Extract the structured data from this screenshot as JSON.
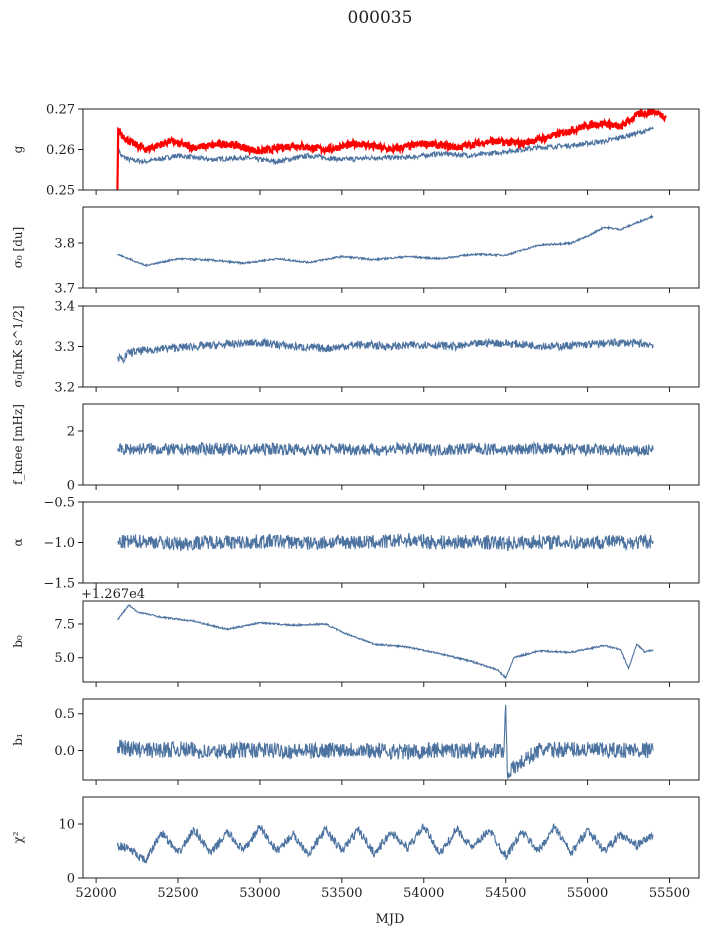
{
  "figure_title": "000035",
  "colors": {
    "series": "#4c72a0",
    "highlight": "#ff0000",
    "axis": "#222222"
  },
  "chart_data": [
    {
      "type": "line",
      "name": "g",
      "ylabel": "g",
      "ylim": [
        0.25,
        0.27
      ],
      "yticks": [
        "0.25",
        "0.26",
        "0.27"
      ],
      "ytick_values": [
        0.25,
        0.26,
        0.27
      ],
      "series": [
        {
          "color": "#4c72a0",
          "x": [
            52130,
            52150,
            52200,
            52300,
            52500,
            52700,
            52900,
            53100,
            53300,
            53500,
            53700,
            53900,
            54100,
            54300,
            54500,
            54700,
            54900,
            55100,
            55300,
            55400
          ],
          "y": [
            0.2615,
            0.2585,
            0.2575,
            0.257,
            0.2585,
            0.2575,
            0.258,
            0.257,
            0.2585,
            0.2575,
            0.258,
            0.258,
            0.259,
            0.2585,
            0.2595,
            0.2605,
            0.261,
            0.262,
            0.264,
            0.265
          ]
        },
        {
          "color": "#ff0000",
          "x": [
            52130,
            52135,
            52150,
            52200,
            52300,
            52450,
            52600,
            52800,
            53000,
            53200,
            53400,
            53600,
            53800,
            54000,
            54200,
            54400,
            54600,
            54800,
            55000,
            55100,
            55200,
            55300,
            55400,
            55480
          ],
          "y": [
            0.25,
            0.265,
            0.264,
            0.262,
            0.26,
            0.262,
            0.2605,
            0.2615,
            0.2595,
            0.261,
            0.26,
            0.2615,
            0.26,
            0.2615,
            0.2605,
            0.262,
            0.2615,
            0.2635,
            0.266,
            0.2665,
            0.2655,
            0.2685,
            0.2695,
            0.268
          ]
        }
      ]
    },
    {
      "type": "line",
      "name": "sigma0-du",
      "ylabel": "σ₀ [du]",
      "ylim": [
        3.7,
        3.88
      ],
      "yticks": [
        "3.7",
        "3.8"
      ],
      "ytick_values": [
        3.7,
        3.8
      ],
      "series": [
        {
          "color": "#4c72a0",
          "x": [
            52130,
            52200,
            52300,
            52500,
            52700,
            52900,
            53100,
            53300,
            53500,
            53700,
            53900,
            54100,
            54300,
            54500,
            54700,
            54900,
            55000,
            55100,
            55200,
            55300,
            55400
          ],
          "y": [
            3.775,
            3.765,
            3.75,
            3.765,
            3.762,
            3.755,
            3.765,
            3.757,
            3.77,
            3.763,
            3.77,
            3.765,
            3.775,
            3.773,
            3.795,
            3.8,
            3.815,
            3.835,
            3.83,
            3.845,
            3.86
          ]
        }
      ]
    },
    {
      "type": "line",
      "name": "sigma0-mk",
      "ylabel": "σ₀[mK s^1/2]",
      "ylim": [
        3.2,
        3.4
      ],
      "yticks": [
        "3.2",
        "3.3",
        "3.4"
      ],
      "ytick_values": [
        3.2,
        3.3,
        3.4
      ],
      "series": [
        {
          "color": "#4c72a0",
          "x": [
            52130,
            52160,
            52200,
            52400,
            52600,
            52800,
            53000,
            53200,
            53400,
            53600,
            53800,
            54000,
            54200,
            54400,
            54600,
            54800,
            55000,
            55200,
            55400
          ],
          "y": [
            3.275,
            3.265,
            3.285,
            3.295,
            3.3,
            3.305,
            3.31,
            3.3,
            3.295,
            3.305,
            3.3,
            3.305,
            3.3,
            3.31,
            3.305,
            3.3,
            3.305,
            3.31,
            3.305
          ]
        }
      ]
    },
    {
      "type": "line",
      "name": "fknee",
      "ylabel": "f_knee [mHz]",
      "ylim": [
        0,
        3
      ],
      "yticks": [
        "0",
        "2"
      ],
      "ytick_values": [
        0,
        2
      ],
      "series": [
        {
          "color": "#4c72a0",
          "x": [
            52130,
            52300,
            52500,
            52700,
            52900,
            53100,
            53300,
            53500,
            53700,
            53900,
            54100,
            54300,
            54500,
            54700,
            54900,
            55100,
            55300,
            55400
          ],
          "y": [
            1.3,
            1.35,
            1.3,
            1.35,
            1.3,
            1.35,
            1.3,
            1.35,
            1.3,
            1.35,
            1.3,
            1.35,
            1.3,
            1.35,
            1.3,
            1.3,
            1.25,
            1.3
          ]
        }
      ]
    },
    {
      "type": "line",
      "name": "alpha",
      "ylabel": "α",
      "ylim": [
        -1.5,
        -0.5
      ],
      "yticks": [
        "−1.5",
        "−1.0",
        "−0.5"
      ],
      "ytick_values": [
        -1.5,
        -1.0,
        -0.5
      ],
      "series": [
        {
          "color": "#4c72a0",
          "x": [
            52130,
            52300,
            52500,
            52700,
            52900,
            53100,
            53300,
            53500,
            53700,
            53900,
            54100,
            54300,
            54500,
            54700,
            54900,
            55100,
            55300,
            55400
          ],
          "y": [
            -1.0,
            -0.98,
            -1.02,
            -0.99,
            -1.0,
            -0.98,
            -1.01,
            -0.99,
            -1.0,
            -0.97,
            -1.0,
            -0.99,
            -1.01,
            -0.99,
            -1.0,
            -0.99,
            -1.0,
            -0.98
          ]
        }
      ]
    },
    {
      "type": "line",
      "name": "b0",
      "ylabel": "b₀",
      "ylim": [
        3.2,
        9.2
      ],
      "offset_text": "+1.267e4",
      "yticks": [
        "5.0",
        "7.5"
      ],
      "ytick_values": [
        5.0,
        7.5
      ],
      "series": [
        {
          "color": "#4c72a0",
          "x": [
            52130,
            52200,
            52250,
            52400,
            52600,
            52800,
            53000,
            53200,
            53400,
            53500,
            53700,
            53900,
            54100,
            54300,
            54450,
            54500,
            54550,
            54700,
            54900,
            55100,
            55200,
            55250,
            55300,
            55350,
            55400
          ],
          "y": [
            7.8,
            8.9,
            8.4,
            8.0,
            7.7,
            7.1,
            7.6,
            7.4,
            7.5,
            6.9,
            6.0,
            5.8,
            5.3,
            4.7,
            4.1,
            3.5,
            5.0,
            5.5,
            5.4,
            5.9,
            5.6,
            4.2,
            6.0,
            5.4,
            5.6
          ]
        }
      ]
    },
    {
      "type": "line",
      "name": "b1",
      "ylabel": "b₁",
      "ylim": [
        -0.4,
        0.7
      ],
      "yticks": [
        "0.0",
        "0.5"
      ],
      "ytick_values": [
        0.0,
        0.5
      ],
      "series": [
        {
          "color": "#4c72a0",
          "x": [
            52130,
            52300,
            52500,
            52700,
            52900,
            53100,
            53300,
            53500,
            53700,
            53900,
            54100,
            54300,
            54490,
            54500,
            54510,
            54700,
            54900,
            55100,
            55300,
            55400
          ],
          "y": [
            0.05,
            0.0,
            0.02,
            -0.02,
            0.01,
            0.0,
            -0.01,
            0.02,
            0.0,
            -0.02,
            0.01,
            0.0,
            0.0,
            0.62,
            -0.3,
            0.0,
            0.02,
            0.0,
            0.01,
            0.0
          ]
        }
      ]
    },
    {
      "type": "line",
      "name": "chi2",
      "ylabel": "χ²",
      "ylim": [
        0,
        15
      ],
      "yticks": [
        "0",
        "10"
      ],
      "ytick_values": [
        0,
        10
      ],
      "series": [
        {
          "color": "#4c72a0",
          "x": [
            52130,
            52200,
            52300,
            52400,
            52500,
            52600,
            52700,
            52800,
            52900,
            53000,
            53100,
            53200,
            53300,
            53400,
            53500,
            53600,
            53700,
            53800,
            53900,
            54000,
            54100,
            54200,
            54300,
            54400,
            54500,
            54600,
            54700,
            54800,
            54900,
            55000,
            55100,
            55200,
            55300,
            55400
          ],
          "y": [
            6.0,
            5.5,
            3.0,
            8.5,
            4.5,
            9.0,
            4.5,
            8.5,
            5.0,
            9.5,
            5.0,
            8.0,
            4.5,
            9.0,
            5.0,
            9.0,
            4.5,
            8.5,
            5.5,
            9.5,
            4.5,
            9.0,
            5.5,
            9.0,
            4.0,
            8.5,
            5.0,
            9.5,
            4.5,
            9.0,
            5.0,
            8.0,
            6.0,
            8.0
          ]
        }
      ]
    }
  ],
  "x_axis": {
    "label": "MJD",
    "lim": [
      51920,
      55680
    ],
    "ticks": [
      "52000",
      "52500",
      "53000",
      "53500",
      "54000",
      "54500",
      "55000",
      "55500"
    ],
    "tick_values": [
      52000,
      52500,
      53000,
      53500,
      54000,
      54500,
      55000,
      55500
    ]
  }
}
